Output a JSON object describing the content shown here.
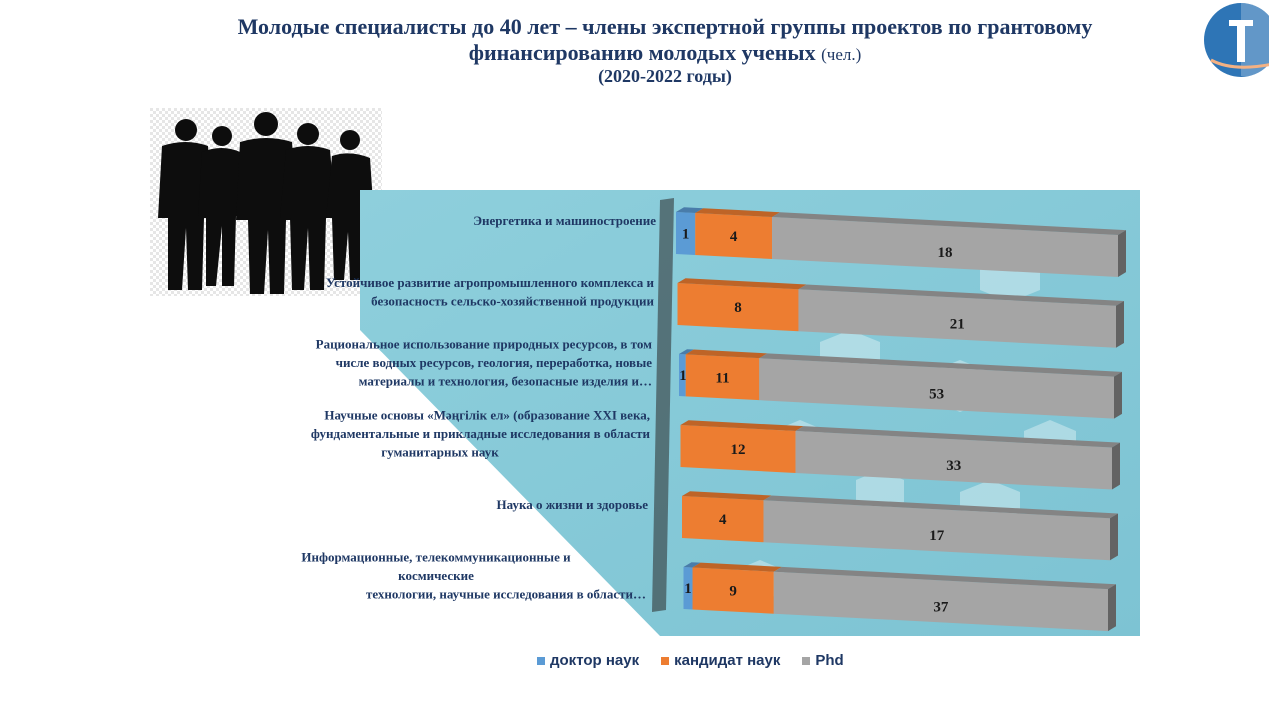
{
  "title": {
    "line1": "Молодые специалисты до 40 лет – члены экспертной группы проектов по грантовому",
    "line2": "финансированию молодых ученых",
    "unit": "(чел.)",
    "years": "(2020-2022 годы)"
  },
  "chart_data": {
    "type": "bar",
    "orientation": "horizontal",
    "stacked": true,
    "categories": [
      [
        "Энергетика и машиностроение"
      ],
      [
        "Устойчивое развитие агропромышленного  комплекса и",
        "безопасность сельско-хозяйственной продукции"
      ],
      [
        "Рациональное использование природных  ресурсов,  в том",
        "числе водных ресурсов, геология, переработка,  новые",
        "материалы и технология, безопасные изделия и…"
      ],
      [
        "Научные основы «Мәңгілік ел» (образование XXI века,",
        "фундаментальные и прикладные исследования в области",
        "гуманитарных наук"
      ],
      [
        "Наука  о жизни и здоровье"
      ],
      [
        "Информационные, телекоммуникационные и",
        "космические",
        "технологии, научные исследования в области…"
      ]
    ],
    "series": [
      {
        "name": "доктор наук",
        "color": "#5b9bd5",
        "values": [
          1,
          0,
          1,
          0,
          0,
          1
        ]
      },
      {
        "name": "кандидат наук",
        "color": "#ed7d31",
        "values": [
          4,
          8,
          11,
          12,
          4,
          9
        ]
      },
      {
        "name": "Phd",
        "color": "#a5a5a5",
        "values": [
          18,
          21,
          53,
          33,
          17,
          37
        ]
      }
    ]
  },
  "legend": {
    "items": [
      {
        "label": "доктор наук",
        "color": "#5b9bd5"
      },
      {
        "label": "кандидат наук",
        "color": "#ed7d31"
      },
      {
        "label": "Phd",
        "color": "#a5a5a5"
      }
    ]
  }
}
